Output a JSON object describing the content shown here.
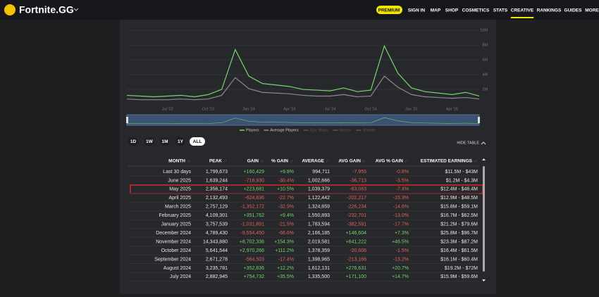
{
  "nav": {
    "brand": "Fortnite.GG",
    "items": [
      "PREMIUM",
      "SIGN IN",
      "MAP",
      "SHOP",
      "COSMETICS",
      "STATS",
      "CREATIVE",
      "RANKINGS",
      "GUIDES",
      "MORE"
    ],
    "active": 6
  },
  "chart_data": {
    "type": "line",
    "categories": [
      null,
      null,
      null,
      "Jul '23",
      null,
      null,
      "Oct '23",
      null,
      null,
      "Jan '24",
      null,
      null,
      "Apr '24",
      null,
      null,
      "Jul '24",
      null,
      null,
      "Oct '24",
      null,
      null,
      "Jan '25",
      null,
      null,
      "Apr '25",
      null,
      null
    ],
    "series": [
      {
        "name": "Players",
        "color": "#7bd36f",
        "values": [
          1.2,
          1.1,
          1.0,
          1.1,
          1.2,
          1.0,
          1.3,
          2.0,
          7.4,
          3.8,
          2.8,
          2.6,
          2.4,
          2.0,
          1.9,
          1.8,
          2.2,
          1.7,
          1.9,
          7.9,
          4.2,
          2.2,
          1.7,
          1.5,
          1.3,
          1.6,
          1.1
        ]
      },
      {
        "name": "Average Players",
        "color": "#8a8a8a",
        "values": [
          0.7,
          0.6,
          0.6,
          0.6,
          0.7,
          0.6,
          0.7,
          1.2,
          3.6,
          2.1,
          1.6,
          1.5,
          1.4,
          1.2,
          1.1,
          1.1,
          1.3,
          1.0,
          1.1,
          3.8,
          2.3,
          1.3,
          1.0,
          0.9,
          0.8,
          0.9,
          0.7
        ]
      }
    ],
    "inactive_legend": [
      "Epic Maps",
      "Roblox",
      "Stream"
    ],
    "ylim": [
      0,
      10.4
    ],
    "yticks": [
      {
        "value": 2,
        "label": "2M"
      },
      {
        "value": 4,
        "label": "4M"
      },
      {
        "value": 6,
        "label": "6M"
      },
      {
        "value": 8,
        "label": "8M"
      },
      {
        "value": 10,
        "label": "10M"
      }
    ],
    "grid": true
  },
  "ranges": {
    "items": [
      "1D",
      "1W",
      "1M",
      "1Y",
      "ALL"
    ],
    "active": 4
  },
  "hide_table": "HIDE TABLE",
  "table": {
    "columns": [
      "MONTH",
      "PEAK",
      "GAIN",
      "% GAIN",
      "AVERAGE",
      "AVG GAIN",
      "AVG % GAIN",
      "ESTIMATED EARNINGS"
    ],
    "highlight": 2,
    "rows": [
      [
        "Last 30 days",
        "1,799,673",
        "+160,429",
        "+9.8%",
        "994,711",
        "-7,955",
        "-0.8%",
        "$11.5M - $43M"
      ],
      [
        "June 2025",
        "1,639,244",
        "-716,930",
        "-30.4%",
        "1,002,666",
        "-36,713",
        "-3.5%",
        "$1.2M - $4.3M"
      ],
      [
        "May 2025",
        "2,356,174",
        "+223,681",
        "+10.5%",
        "1,039,379",
        "-83,063",
        "-7.4%",
        "$12.4M - $46.4M"
      ],
      [
        "April 2025",
        "2,132,493",
        "-624,636",
        "-22.7%",
        "1,122,442",
        "-202,217",
        "-15.3%",
        "$12.9M - $48.5M"
      ],
      [
        "March 2025",
        "2,757,129",
        "-1,352,172",
        "-32.9%",
        "1,324,659",
        "-226,234",
        "-14.6%",
        "$15.8M - $59.1M"
      ],
      [
        "February 2025",
        "4,109,301",
        "+351,762",
        "+9.4%",
        "1,550,893",
        "-232,701",
        "-13.0%",
        "$16.7M - $62.5M"
      ],
      [
        "January 2025",
        "3,757,539",
        "-1,031,891",
        "-21.5%",
        "1,783,594",
        "-382,591",
        "-17.7%",
        "$21.2M - $79.6M"
      ],
      [
        "December 2024",
        "4,789,430",
        "-9,554,450",
        "-66.6%",
        "2,166,185",
        "+146,604",
        "+7.3%",
        "$25.8M - $96.7M"
      ],
      [
        "November 2024",
        "14,343,880",
        "+8,702,336",
        "+154.3%",
        "2,019,581",
        "+641,222",
        "+46.5%",
        "$23.3M - $87.2M"
      ],
      [
        "October 2024",
        "5,641,544",
        "+2,970,266",
        "+111.2%",
        "1,378,359",
        "-20,606",
        "-1.5%",
        "$16.4M - $61.5M"
      ],
      [
        "September 2024",
        "2,671,278",
        "-564,503",
        "-17.4%",
        "1,398,965",
        "-213,166",
        "-13.2%",
        "$16.1M - $60.4M"
      ],
      [
        "August 2024",
        "3,235,781",
        "+352,836",
        "+12.2%",
        "1,612,131",
        "+276,631",
        "+20.7%",
        "$19.2M - $72M"
      ],
      [
        "July 2024",
        "2,882,945",
        "+754,732",
        "+35.5%",
        "1,335,500",
        "+171,100",
        "+14.7%",
        "$15.9M - $59.6M"
      ]
    ]
  }
}
